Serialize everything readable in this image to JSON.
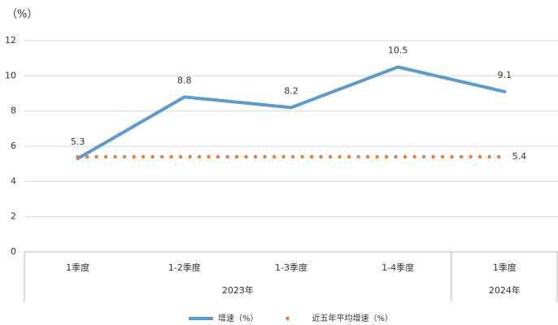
{
  "chart_data": {
    "type": "line",
    "unit_label": "（%）",
    "categories": [
      "1季度",
      "1-2季度",
      "1-3季度",
      "1-4季度",
      "1季度"
    ],
    "groups": [
      {
        "name": "2023年",
        "count": 4
      },
      {
        "name": "2024年",
        "count": 1
      }
    ],
    "series": [
      {
        "name": "增速（%）",
        "color": "#5b9bd5",
        "style": "solid",
        "values": [
          5.3,
          8.8,
          8.2,
          10.5,
          9.1
        ],
        "show_labels": [
          true,
          true,
          true,
          true,
          true
        ]
      },
      {
        "name": "近五年平均增速（%）",
        "color": "#ed7d31",
        "style": "dotted",
        "values": [
          5.4,
          5.4,
          5.4,
          5.4,
          5.4
        ],
        "show_labels": [
          false,
          false,
          false,
          false,
          true
        ]
      }
    ],
    "ylim": [
      0,
      12
    ],
    "yticks": [
      0,
      2,
      4,
      6,
      8,
      10,
      12
    ],
    "grid": true,
    "legend": "bottom"
  }
}
